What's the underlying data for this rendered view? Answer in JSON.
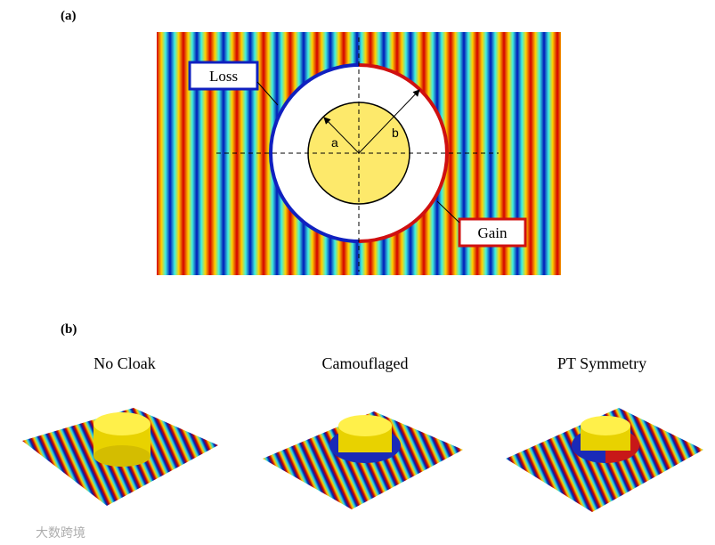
{
  "panel_a": {
    "label": "(a)",
    "loss": "Loss",
    "gain": "Gain",
    "radius_inner": "a",
    "radius_outer": "b"
  },
  "panel_b": {
    "label": "(b)",
    "titles": [
      "No Cloak",
      "Camouflaged",
      "PT Symmetry"
    ]
  },
  "watermark": "大数跨境"
}
